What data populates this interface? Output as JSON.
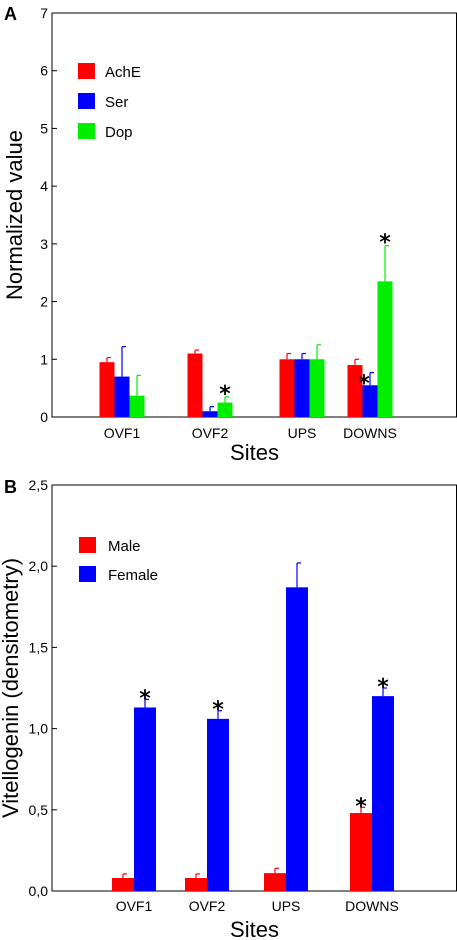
{
  "chart_data": [
    {
      "type": "bar",
      "panel": "A",
      "title": "",
      "xlabel": "Sites",
      "ylabel": "Normalized value",
      "ylim": [
        0,
        7
      ],
      "yticks": [
        "0",
        "1",
        "2",
        "3",
        "4",
        "5",
        "6",
        "7"
      ],
      "categories": [
        "OVF1",
        "OVF2",
        "UPS",
        "DOWNS"
      ],
      "legend_position": "upper-left",
      "series": [
        {
          "name": "AchE",
          "color": "#ff0000",
          "values": [
            0.95,
            1.1,
            1.0,
            0.9
          ],
          "errors": [
            0.08,
            0.06,
            0.1,
            0.1
          ],
          "significant": [
            false,
            false,
            false,
            false
          ]
        },
        {
          "name": "Ser",
          "color": "#0000ff",
          "values": [
            0.7,
            0.1,
            1.0,
            0.55
          ],
          "errors": [
            0.52,
            0.08,
            0.1,
            0.22
          ],
          "significant": [
            false,
            false,
            false,
            true
          ]
        },
        {
          "name": "Dop",
          "color": "#00ee00",
          "values": [
            0.37,
            0.25,
            1.0,
            2.35
          ],
          "errors": [
            0.35,
            0.1,
            0.25,
            0.62
          ],
          "significant": [
            false,
            true,
            false,
            true
          ]
        }
      ],
      "significance_marker": "*"
    },
    {
      "type": "bar",
      "panel": "B",
      "title": "",
      "xlabel": "Sites",
      "ylabel": "Vitellogenin (densitometry)",
      "ylim": [
        0,
        2.5
      ],
      "yticks": [
        "0,0",
        "0,5",
        "1,0",
        "1,5",
        "2,0",
        "2,5"
      ],
      "categories": [
        "OVF1",
        "OVF2",
        "UPS",
        "DOWNS"
      ],
      "legend_position": "upper-left",
      "series": [
        {
          "name": "Male",
          "color": "#ff0000",
          "values": [
            0.08,
            0.08,
            0.11,
            0.48
          ],
          "errors": [
            0.025,
            0.025,
            0.03,
            0.035
          ],
          "significant": [
            false,
            false,
            false,
            true
          ]
        },
        {
          "name": "Female",
          "color": "#0000ff",
          "values": [
            1.13,
            1.06,
            1.87,
            1.2
          ],
          "errors": [
            0.05,
            0.05,
            0.15,
            0.05
          ],
          "significant": [
            true,
            true,
            false,
            true
          ]
        }
      ],
      "significance_marker": "*"
    }
  ]
}
